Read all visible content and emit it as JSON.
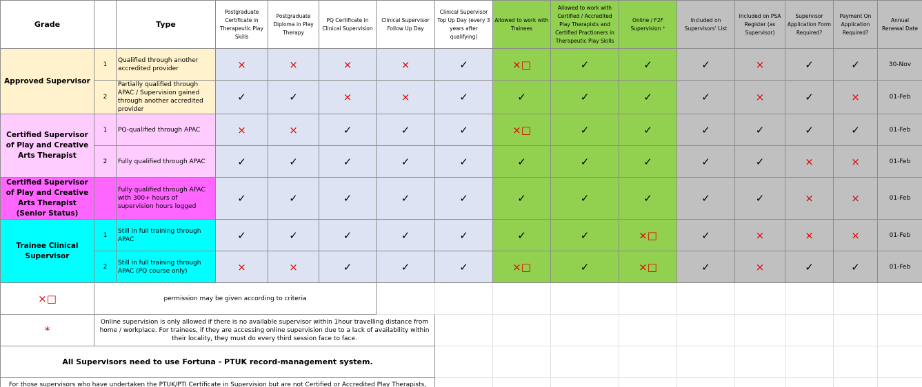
{
  "header": {
    "grade": "Grade",
    "type": "Type",
    "columns": [
      "Postgraduate Certificate in Therapeutic Play Skills",
      "Postgraduate Diploma in Play Therapy",
      "PQ Certificate in Clinical Supervision",
      "Clinical Supervisor Follow Up Day",
      "Clinical Supervisor Top Up Day (every 3 years after qualifying)",
      "Allowed to work with Trainees",
      "Allowed to work with Certified / Accredited Play Therapists and Certified Practioners in Therapeutic Play Skills",
      "Online / F2F Supervision",
      "Included on Supervisors' List",
      "Included on PSA Register (as Supervisor)",
      "Supervisor Application Form Required?",
      "Payment On Application Required?",
      "Annual Renewal Date"
    ],
    "online_marker": "*"
  },
  "groups": [
    {
      "grade": "Approved Supervisor",
      "rows": [
        {
          "number": 1,
          "type": "Qualified through another accredited provider",
          "cells": [
            "×",
            "×",
            "×",
            "×",
            "✓",
            "×□",
            "✓",
            "✓",
            "✓",
            "×",
            "✓",
            "✓",
            "30-Nov"
          ]
        },
        {
          "number": 2,
          "type": "Partially qualified through APAC / Supervision gained through another accredited provider",
          "cells": [
            "✓",
            "✓",
            "×",
            "×",
            "✓",
            "✓",
            "✓",
            "✓",
            "✓",
            "×",
            "✓",
            "×",
            "01-Feb"
          ]
        }
      ]
    },
    {
      "grade": "Certified Supervisor of Play and Creative Arts Therapist",
      "rows": [
        {
          "number": 1,
          "type": "PQ-qualified through APAC",
          "cells": [
            "×",
            "×",
            "✓",
            "✓",
            "✓",
            "×□",
            "✓",
            "✓",
            "✓",
            "✓",
            "✓",
            "✓",
            "01-Feb"
          ]
        },
        {
          "number": 2,
          "type": "Fully qualified through APAC",
          "cells": [
            "✓",
            "✓",
            "✓",
            "✓",
            "✓",
            "✓",
            "✓",
            "✓",
            "✓",
            "✓",
            "×",
            "×",
            "01-Feb"
          ]
        }
      ]
    },
    {
      "grade": "Certified Supervisor of Play and Creative Arts Therapist (Senior Status)",
      "rows": [
        {
          "number": null,
          "type": "Fully qualified through APAC with 300+ hours of supervision hours logged",
          "cells": [
            "✓",
            "✓",
            "✓",
            "✓",
            "✓",
            "✓",
            "✓",
            "✓",
            "✓",
            "✓",
            "×",
            "×",
            "01-Feb"
          ]
        }
      ]
    },
    {
      "grade": "Trainee Clinical Supervisor",
      "rows": [
        {
          "number": 1,
          "type": "Still in full  training through APAC",
          "cells": [
            "✓",
            "✓",
            "✓",
            "✓",
            "✓",
            "✓",
            "✓",
            "×□",
            "✓",
            "×",
            "×",
            "×",
            "01-Feb"
          ]
        },
        {
          "number": 2,
          "type": "Still in full  training through APAC (PQ course only)",
          "cells": [
            "×",
            "×",
            "✓",
            "✓",
            "✓",
            "×□",
            "✓",
            "×□",
            "✓",
            "×",
            "✓",
            "✓",
            "01-Feb"
          ]
        }
      ]
    }
  ],
  "legend": {
    "symbol": "×□",
    "text": "permission may be given according to criteria"
  },
  "online_note": {
    "marker": "*",
    "text": "Online supervision is only allowed if there is no available supervisor within 1hour travelling distance from home / workplace. For trainees, if they are accessing online supervision due to a lack of availability within their locality, they must do every third session face to face."
  },
  "banner": "All Supervisors need to use Fortuna - PTUK record-management system.",
  "footnote": "For those supervisors who have undertaken the PTUK/PTI Certificate in Supervision but are not Certified or Accredited Play Therapists, they will not be able to supervise trainees at either the Certificate or Diploma stage."
}
